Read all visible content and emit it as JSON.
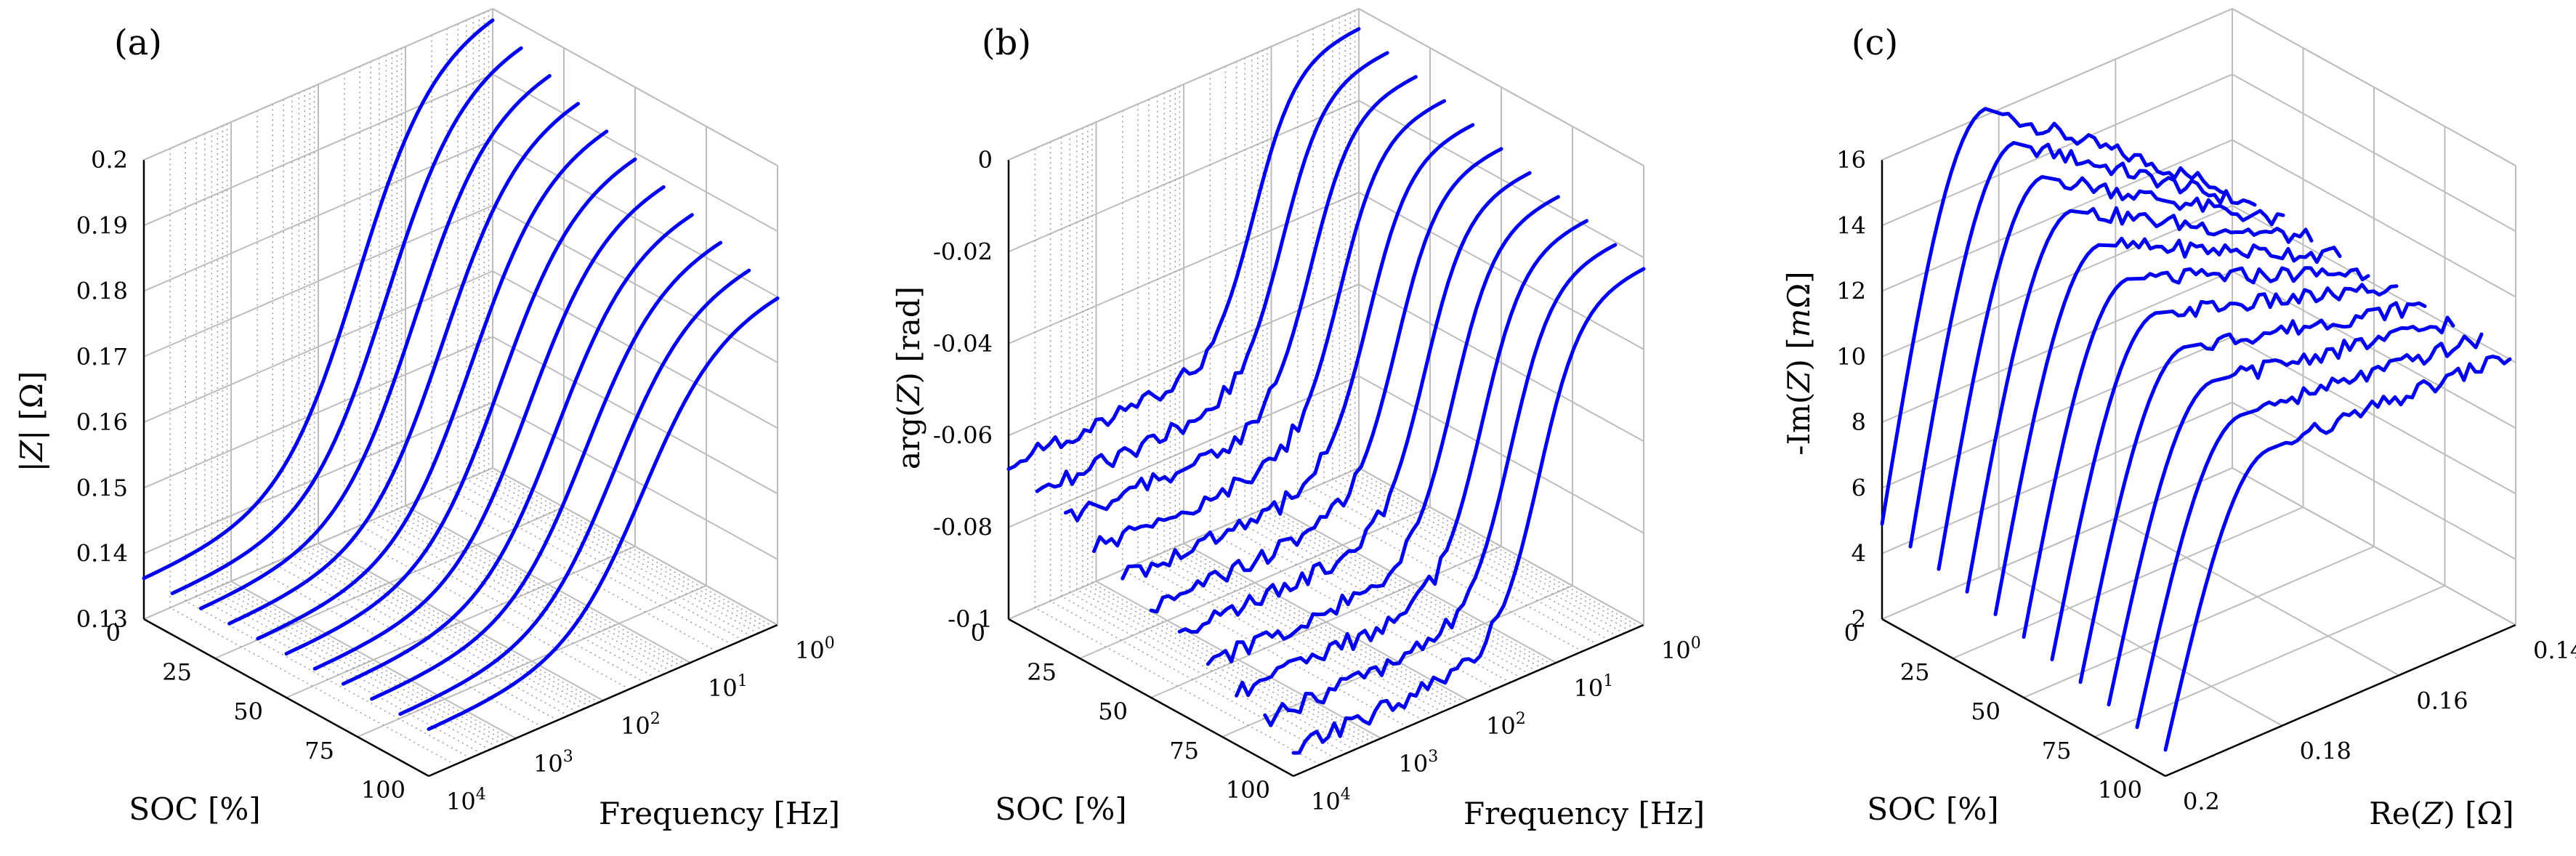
{
  "figure": {
    "panel_labels": [
      "(a)",
      "(b)",
      "(c)"
    ]
  },
  "colors": {
    "curve": "#0000ee",
    "grid": "#bdbdbd",
    "axis": "#000000"
  },
  "chart_data": [
    {
      "type": "line",
      "view": "3d",
      "panel": "(a)",
      "zlabel": "|Z| [Ω]",
      "zlabel_parts": [
        "|",
        "Z",
        "| [Ω]"
      ],
      "ylabel": "SOC [%]",
      "xlabel": "Frequency [Hz]",
      "zlim": [
        0.13,
        0.2
      ],
      "ylim": [
        0,
        100
      ],
      "xscale": "log",
      "xlim_log10": [
        0,
        4
      ],
      "zticks": [
        "0.13",
        "0.14",
        "0.15",
        "0.16",
        "0.17",
        "0.18",
        "0.19",
        "0.2"
      ],
      "yticks": [
        "0",
        "25",
        "50",
        "75",
        "100"
      ],
      "xticks_exp": [
        "0",
        "1",
        "2",
        "3",
        "4"
      ],
      "xtick_base": "10",
      "soc_levels": [
        0,
        10,
        20,
        30,
        40,
        50,
        60,
        70,
        80,
        90,
        100
      ],
      "freq_log10_samples": [
        0,
        0.5,
        1,
        1.5,
        2,
        2.5,
        3,
        3.5,
        4
      ],
      "series_note": "|Z| vs log10 frequency, one curve per SOC level",
      "values_at_soc0": [
        0.2,
        0.198,
        0.19,
        0.176,
        0.161,
        0.149,
        0.141,
        0.137,
        0.136
      ],
      "values_at_soc100": [
        0.181,
        0.179,
        0.175,
        0.167,
        0.156,
        0.147,
        0.141,
        0.138,
        0.137
      ]
    },
    {
      "type": "line",
      "view": "3d",
      "panel": "(b)",
      "zlabel": "arg(Z) [rad]",
      "zlabel_parts": [
        "arg(",
        "Z",
        ") [rad]"
      ],
      "ylabel": "SOC [%]",
      "xlabel": "Frequency [Hz]",
      "zlim": [
        -0.1,
        0
      ],
      "ylim": [
        0,
        100
      ],
      "xscale": "log",
      "xlim_log10": [
        0,
        4
      ],
      "zticks": [
        "-0.1",
        "-0.08",
        "-0.06",
        "-0.04",
        "-0.02",
        "0"
      ],
      "yticks": [
        "0",
        "25",
        "50",
        "75",
        "100"
      ],
      "xticks_exp": [
        "0",
        "1",
        "2",
        "3",
        "4"
      ],
      "xtick_base": "10",
      "soc_levels": [
        0,
        10,
        20,
        30,
        40,
        50,
        60,
        70,
        80,
        90,
        100
      ],
      "freq_log10_samples": [
        0,
        0.5,
        1,
        1.5,
        2,
        2.5,
        3,
        3.5,
        4
      ],
      "series_note": "phase vs log10 frequency, one curve per SOC level",
      "values_at_soc0": [
        -0.004,
        -0.01,
        -0.03,
        -0.058,
        -0.066,
        -0.065,
        -0.066,
        -0.064,
        -0.067
      ],
      "values_at_soc100": [
        -0.022,
        -0.03,
        -0.05,
        -0.078,
        -0.09,
        -0.092,
        -0.093,
        -0.094,
        -0.095
      ]
    },
    {
      "type": "line",
      "view": "3d",
      "panel": "(c)",
      "zlabel": "-Im(Z) [mΩ]",
      "zlabel_parts": [
        "-Im(",
        "Z",
        ") [",
        "m",
        "Ω]"
      ],
      "ylabel": "SOC [%]",
      "xlabel": "Re(Z) [Ω]",
      "xlabel_parts": [
        "Re(",
        "Z",
        ") [Ω]"
      ],
      "zlim": [
        2,
        16
      ],
      "ylim": [
        0,
        100
      ],
      "xlim": [
        0.14,
        0.2
      ],
      "zticks": [
        "2",
        "4",
        "6",
        "8",
        "10",
        "12",
        "14",
        "16"
      ],
      "yticks": [
        "0",
        "25",
        "50",
        "75",
        "100"
      ],
      "xticks": [
        "0.14",
        "0.16",
        "0.18",
        "0.2"
      ],
      "soc_levels": [
        0,
        10,
        20,
        30,
        40,
        50,
        60,
        70,
        80,
        90,
        100
      ],
      "series_note": "Nyquist-style curves, one per SOC level",
      "re_samples_soc0": [
        0.2,
        0.197,
        0.19,
        0.18,
        0.17,
        0.16,
        0.15,
        0.141
      ],
      "im_samples_soc0": [
        5,
        10,
        15.5,
        16,
        14,
        12.5,
        11.5,
        10.7
      ],
      "re_samples_soc100": [
        0.2,
        0.197,
        0.19,
        0.18,
        0.17,
        0.16,
        0.15,
        0.141
      ],
      "im_samples_soc100": [
        3,
        5.5,
        9,
        10.5,
        10.8,
        10.8,
        10.5,
        10.1
      ]
    }
  ]
}
